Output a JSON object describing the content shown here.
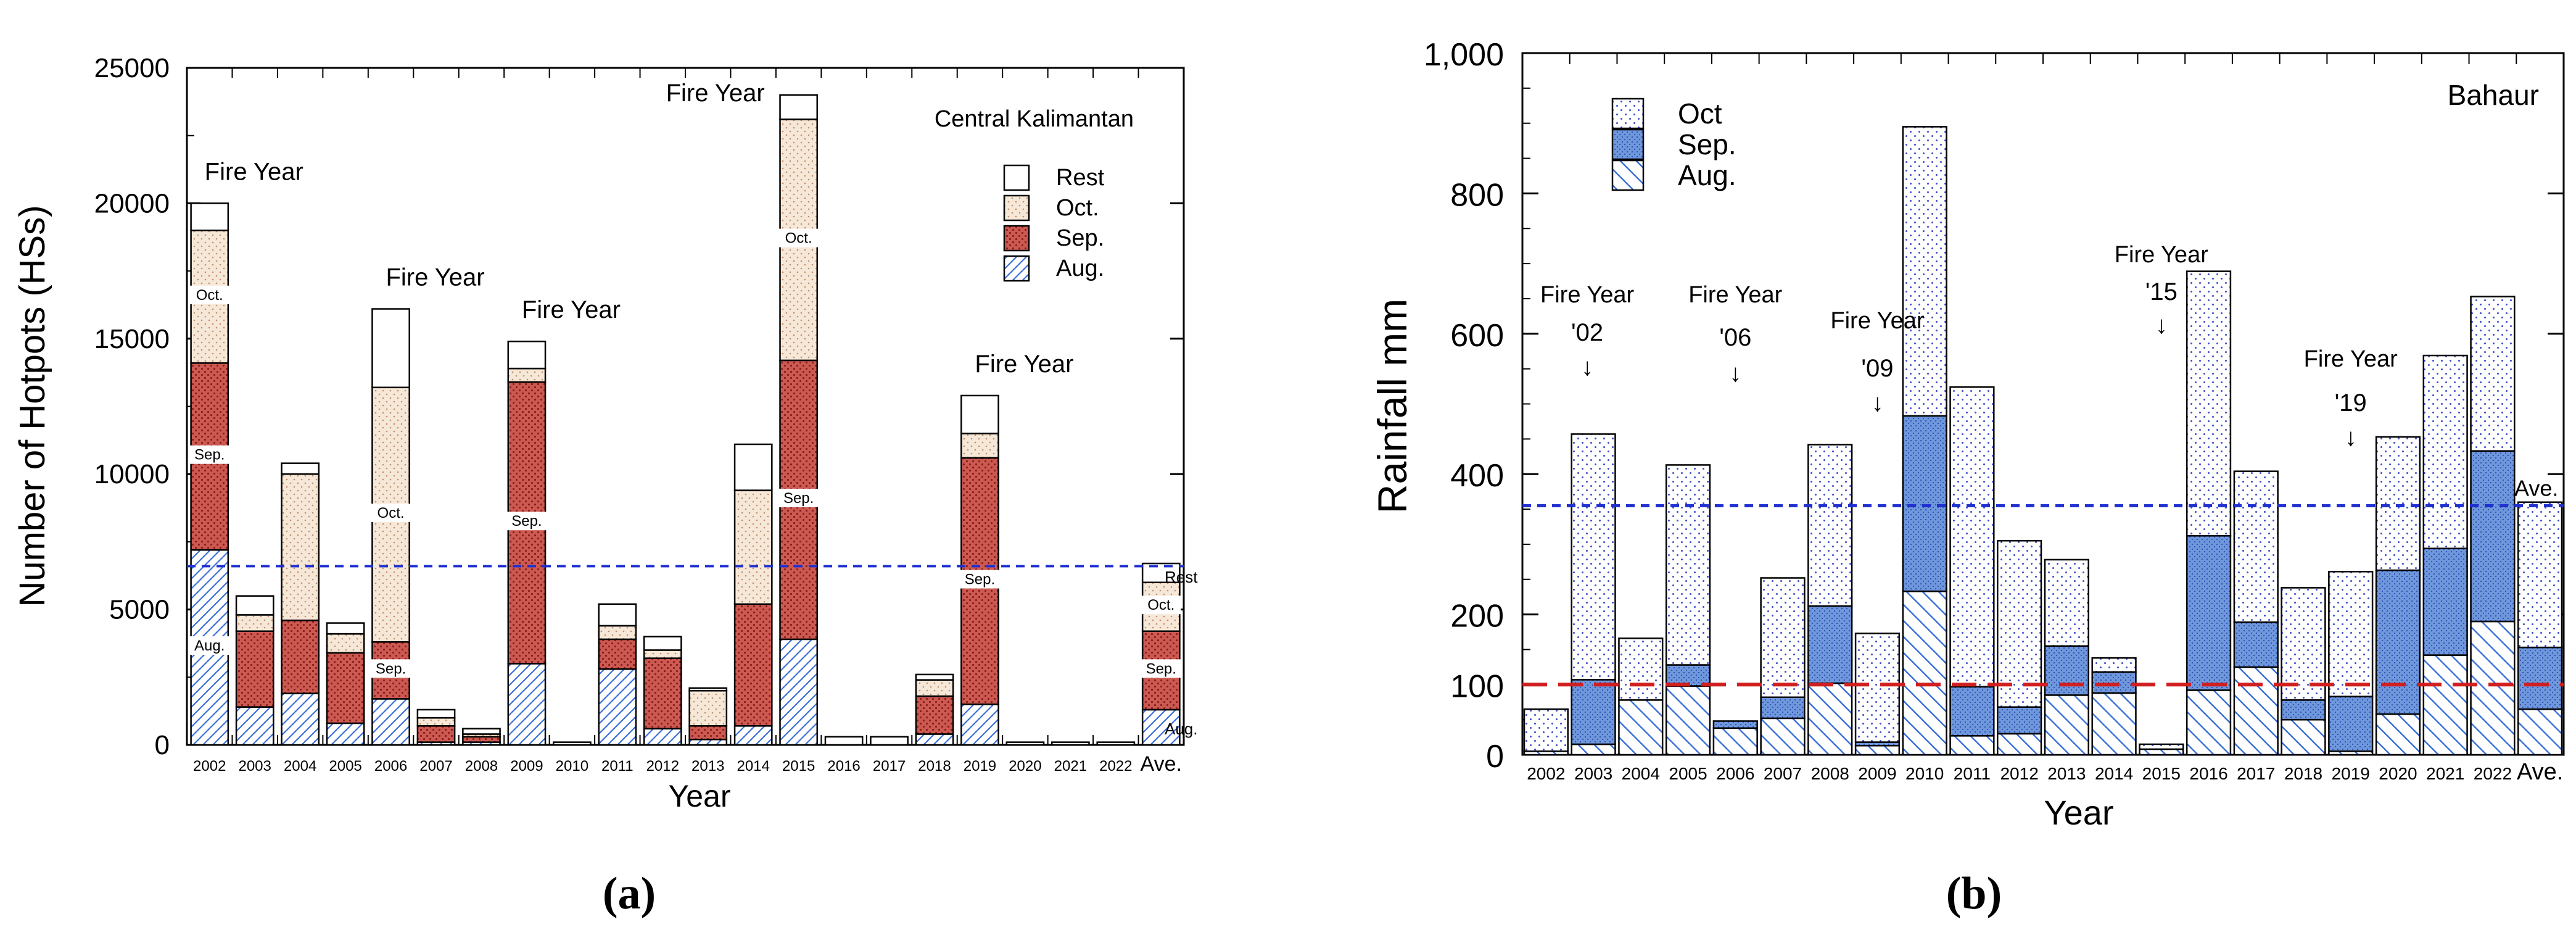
{
  "colors": {
    "rest_fill": "#ffffff",
    "oct_left_fill": "#f6e8d8",
    "oct_left_dot": "#c8906a",
    "sep_left_fill": "#cc5a52",
    "sep_left_dot": "#8a1f1a",
    "aug_hatch": "#3a6fd8",
    "right_oct_dot": "#3d4fc8",
    "right_sep_fill": "#6f97dc",
    "avg_line": "#1f2fd0",
    "threshold_line": "#d11f1f",
    "fire_left": "#c85a2a",
    "fire_right": "#cc2a2a",
    "legend_rest": "#e8901a",
    "legend_oct": "#2b2bc8",
    "legend_sep": "#d070d8",
    "legend_aug": "#b01818",
    "legend_right_oct": "#2b7bd8",
    "legend_right_sep": "#1a2bb8",
    "legend_right_aug": "#2b2bc8"
  },
  "chart_data": [
    {
      "type": "bar",
      "stacked": true,
      "region": "Central Kalimantan",
      "panel_label": "(a)",
      "xlabel": "Year",
      "ylabel": "Number of  Hotpots (HSs)",
      "ylim": [
        0,
        25000
      ],
      "yticks": [
        0,
        5000,
        10000,
        15000,
        20000,
        25000
      ],
      "ytick_labels": [
        "0",
        "5000",
        "10000",
        "15000",
        "20000",
        "25000"
      ],
      "categories": [
        "2002",
        "2003",
        "2004",
        "2005",
        "2006",
        "2007",
        "2008",
        "2009",
        "2010",
        "2011",
        "2012",
        "2013",
        "2014",
        "2015",
        "2016",
        "2017",
        "2018",
        "2019",
        "2020",
        "2021",
        "2022",
        "Ave."
      ],
      "series": [
        {
          "name": "Aug.",
          "values": [
            7200,
            1400,
            1900,
            800,
            1700,
            100,
            100,
            3000,
            0,
            2800,
            600,
            200,
            700,
            3900,
            0,
            0,
            400,
            1500,
            0,
            0,
            0,
            1300
          ]
        },
        {
          "name": "Sep.",
          "values": [
            6900,
            2800,
            2700,
            2600,
            2100,
            600,
            200,
            10400,
            0,
            1100,
            2600,
            500,
            4500,
            10300,
            0,
            0,
            1400,
            9100,
            0,
            0,
            0,
            2900
          ]
        },
        {
          "name": "Oct.",
          "values": [
            4900,
            600,
            5400,
            700,
            9400,
            300,
            100,
            500,
            0,
            500,
            300,
            1300,
            4200,
            8900,
            0,
            0,
            600,
            900,
            0,
            0,
            0,
            1800
          ]
        },
        {
          "name": "Rest",
          "values": [
            1000,
            700,
            400,
            400,
            2900,
            300,
            200,
            1000,
            100,
            800,
            500,
            100,
            1700,
            900,
            300,
            300,
            200,
            1400,
            100,
            100,
            100,
            700
          ]
        }
      ],
      "average_line": 6600,
      "segment_labels": [
        {
          "category": "2002",
          "labels": [
            "Aug.",
            "Sep.",
            "Oct."
          ]
        },
        {
          "category": "2006",
          "labels": [
            "Sep.",
            "Oct."
          ]
        },
        {
          "category": "2009",
          "labels": [
            "Sep."
          ]
        },
        {
          "category": "2015",
          "labels": [
            "Sep.",
            "Oct."
          ]
        },
        {
          "category": "2019",
          "labels": [
            "Sep."
          ]
        },
        {
          "category": "Ave.",
          "labels": [
            "Sep.",
            "Oct."
          ]
        }
      ],
      "side_labels": [
        "Rest",
        "Aug."
      ],
      "annotations": [
        {
          "text": "Fire Year",
          "category": "2002"
        },
        {
          "text": "Fire Year",
          "category": "2006"
        },
        {
          "text": "Fire Year",
          "category": "2009"
        },
        {
          "text": "Fire Year",
          "category": "2015"
        },
        {
          "text": "Fire Year",
          "category": "2019"
        }
      ],
      "legend": [
        "Rest",
        "Oct.",
        "Sep.",
        "Aug."
      ],
      "legend_position": "top-right",
      "grid": false
    },
    {
      "type": "bar",
      "stacked": true,
      "region": "Bahaur",
      "panel_label": "(b)",
      "xlabel": "Year",
      "ylabel": "Rainfall    mm",
      "ylim": [
        0,
        1000
      ],
      "yticks": [
        0,
        100,
        200,
        400,
        600,
        800,
        1000
      ],
      "ytick_labels": [
        "0",
        "100",
        "200",
        "400",
        "600",
        "800",
        "1,000"
      ],
      "categories": [
        "2002",
        "2003",
        "2004",
        "2005",
        "2006",
        "2007",
        "2008",
        "2009",
        "2010",
        "2011",
        "2012",
        "2013",
        "2014",
        "2015",
        "2016",
        "2017",
        "2018",
        "2019",
        "2020",
        "2021",
        "2022",
        "Ave."
      ],
      "series": [
        {
          "name": "Aug.",
          "values": [
            5,
            15,
            78,
            98,
            38,
            52,
            102,
            13,
            233,
            27,
            30,
            85,
            88,
            8,
            92,
            125,
            50,
            5,
            58,
            142,
            190,
            65
          ]
        },
        {
          "name": "Sep.",
          "values": [
            0,
            92,
            0,
            30,
            10,
            30,
            110,
            5,
            250,
            70,
            38,
            70,
            30,
            0,
            220,
            64,
            28,
            78,
            205,
            152,
            243,
            88
          ]
        },
        {
          "name": "Oct",
          "values": [
            60,
            350,
            88,
            285,
            0,
            170,
            230,
            155,
            412,
            427,
            237,
            123,
            20,
            7,
            377,
            215,
            160,
            178,
            190,
            275,
            220,
            207
          ]
        }
      ],
      "average_line": 355,
      "threshold_line": 100,
      "annotations": [
        {
          "text": "Fire Year",
          "year_label": "'02",
          "category": "2003"
        },
        {
          "text": "Fire Year",
          "year_label": "'06",
          "category": "2006"
        },
        {
          "text": "Fire Year",
          "year_label": "'09",
          "category": "2009"
        },
        {
          "text": "Fire Year",
          "year_label": "'15",
          "category": "2015"
        },
        {
          "text": "Fire Year",
          "year_label": "'19",
          "category": "2019"
        }
      ],
      "average_label": "Ave.",
      "legend": [
        "Oct",
        "Sep.",
        "Aug."
      ],
      "legend_position": "top-left",
      "grid": false
    }
  ]
}
